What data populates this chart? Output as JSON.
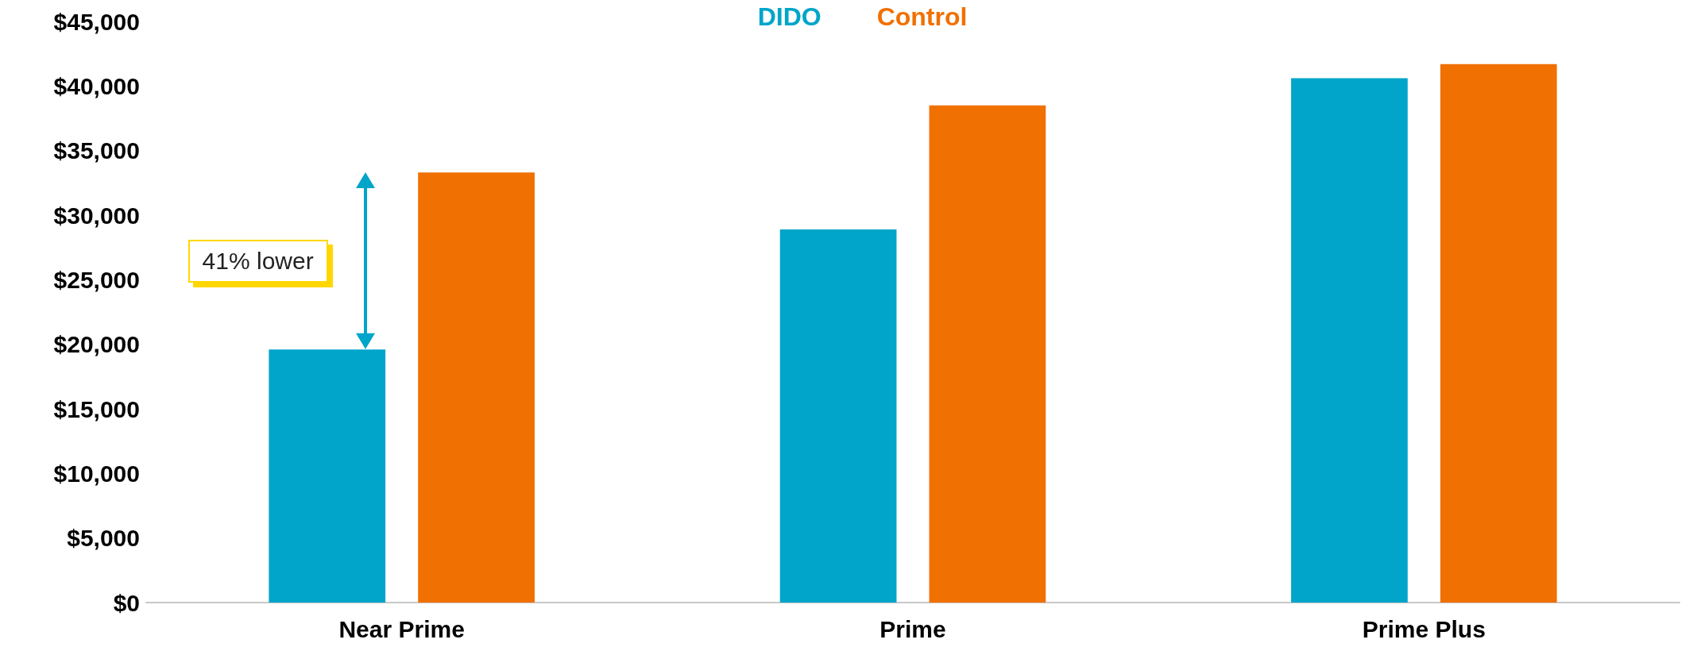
{
  "chart_data": {
    "type": "bar",
    "categories": [
      "Near Prime",
      "Prime",
      "Prime Plus"
    ],
    "series": [
      {
        "name": "DIDO",
        "color": "#00a5c9",
        "values": [
          19600,
          28900,
          40600
        ]
      },
      {
        "name": "Control",
        "color": "#f07002",
        "values": [
          33300,
          38500,
          41700
        ]
      }
    ],
    "ylim": [
      0,
      45000
    ],
    "yticks": [
      {
        "value": 0,
        "label": "$0"
      },
      {
        "value": 5000,
        "label": "$5,000"
      },
      {
        "value": 10000,
        "label": "$10,000"
      },
      {
        "value": 15000,
        "label": "$15,000"
      },
      {
        "value": 20000,
        "label": "$20,000"
      },
      {
        "value": 25000,
        "label": "$25,000"
      },
      {
        "value": 30000,
        "label": "$30,000"
      },
      {
        "value": 35000,
        "label": "$35,000"
      },
      {
        "value": 40000,
        "label": "$40,000"
      },
      {
        "value": 45000,
        "label": "$45,000"
      }
    ],
    "grid": false,
    "legend": "top",
    "annotations": [
      "41% lower"
    ]
  }
}
